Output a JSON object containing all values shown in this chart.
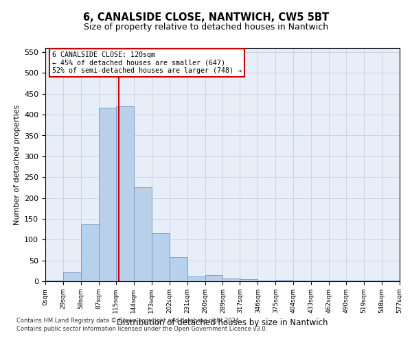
{
  "title": "6, CANALSIDE CLOSE, NANTWICH, CW5 5BT",
  "subtitle": "Size of property relative to detached houses in Nantwich",
  "xlabel": "Distribution of detached houses by size in Nantwich",
  "ylabel": "Number of detached properties",
  "footnote1": "Contains HM Land Registry data © Crown copyright and database right 2024.",
  "footnote2": "Contains public sector information licensed under the Open Government Licence v3.0.",
  "bin_edges": [
    0,
    29,
    58,
    87,
    115,
    144,
    173,
    202,
    231,
    260,
    289,
    317,
    346,
    375,
    404,
    433,
    462,
    490,
    519,
    548,
    577
  ],
  "bar_heights": [
    2,
    22,
    137,
    417,
    420,
    225,
    115,
    58,
    12,
    15,
    7,
    5,
    2,
    3,
    1,
    2,
    1,
    1,
    1,
    1
  ],
  "bar_color": "#b8d0ea",
  "bar_edgecolor": "#6699cc",
  "vline_x": 120,
  "vline_color": "#cc0000",
  "ylim": [
    0,
    560
  ],
  "yticks": [
    0,
    50,
    100,
    150,
    200,
    250,
    300,
    350,
    400,
    450,
    500,
    550
  ],
  "annotation_text": "6 CANALSIDE CLOSE: 120sqm\n← 45% of detached houses are smaller (647)\n52% of semi-detached houses are larger (748) →",
  "annotation_box_facecolor": "#ffffff",
  "annotation_box_edgecolor": "#cc0000",
  "grid_color": "#c8d4e8",
  "background_color": "#e8eef8",
  "tick_labels": [
    "0sqm",
    "29sqm",
    "58sqm",
    "87sqm",
    "115sqm",
    "144sqm",
    "173sqm",
    "202sqm",
    "231sqm",
    "260sqm",
    "289sqm",
    "317sqm",
    "346sqm",
    "375sqm",
    "404sqm",
    "433sqm",
    "462sqm",
    "490sqm",
    "519sqm",
    "548sqm",
    "577sqm"
  ]
}
